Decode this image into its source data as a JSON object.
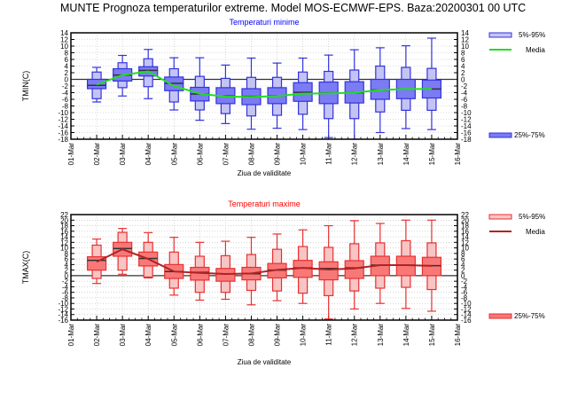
{
  "title": "MUNTE  Prognoza temperaturilor extreme.  Model MOS-ECMWF-EPS. Baza:20200301 00 UTC",
  "chart_data": [
    {
      "type": "box",
      "title": "Temperaturi minime",
      "title_color": "#0000ff",
      "xlabel": "Ziua de validitate",
      "ylabel": "TMIN(C)",
      "ylim": [
        -18,
        14
      ],
      "ytick_step": 2,
      "grid": true,
      "categories": [
        "01-Mar",
        "02-Mar",
        "03-Mar",
        "04-Mar",
        "05-Mar",
        "06-Mar",
        "07-Mar",
        "08-Mar",
        "09-Mar",
        "10-Mar",
        "11-Mar",
        "12-Mar",
        "13-Mar",
        "14-Mar",
        "15-Mar",
        "16-Mar"
      ],
      "colors": {
        "box_outer_fill": "#c4c4f4",
        "box_inner_fill": "#7b7bf4",
        "stroke": "#3333dd",
        "mean_line": "#22dd22",
        "median": "#333333"
      },
      "legend": {
        "outer": "5%-95%",
        "mean": "Media",
        "inner": "25%-75%",
        "position": "right"
      },
      "boxes": [
        {
          "day": "02-Mar",
          "wlo": -6.8,
          "p5": -5.8,
          "p25": -2.8,
          "median": -1.8,
          "p75": 0.0,
          "p95": 2.2,
          "whi": 3.6,
          "mean": -1.6
        },
        {
          "day": "03-Mar",
          "wlo": -5.0,
          "p5": -2.5,
          "p25": -0.5,
          "median": 1.3,
          "p75": 3.2,
          "p95": 5.0,
          "whi": 7.2,
          "mean": 1.3
        },
        {
          "day": "04-Mar",
          "wlo": -5.8,
          "p5": -2.2,
          "p25": 1.0,
          "median": 2.7,
          "p75": 3.8,
          "p95": 6.2,
          "whi": 9.0,
          "mean": 2.4
        },
        {
          "day": "05-Mar",
          "wlo": -9.2,
          "p5": -6.8,
          "p25": -3.4,
          "median": -1.2,
          "p75": 0.7,
          "p95": 3.2,
          "whi": 6.5,
          "mean": -2.0
        },
        {
          "day": "06-Mar",
          "wlo": -12.3,
          "p5": -9.2,
          "p25": -6.5,
          "median": -4.4,
          "p75": -2.4,
          "p95": 0.9,
          "whi": 6.5,
          "mean": -4.3
        },
        {
          "day": "07-Mar",
          "wlo": -13.3,
          "p5": -10.3,
          "p25": -7.3,
          "median": -5.0,
          "p75": -2.5,
          "p95": 0.3,
          "whi": 4.3,
          "mean": -5.2
        },
        {
          "day": "08-Mar",
          "wlo": -15.0,
          "p5": -11.0,
          "p25": -7.6,
          "median": -5.1,
          "p75": -2.8,
          "p95": 0.6,
          "whi": 6.4,
          "mean": -5.3
        },
        {
          "day": "09-Mar",
          "wlo": -14.7,
          "p5": -10.8,
          "p25": -7.3,
          "median": -4.9,
          "p75": -2.5,
          "p95": 0.6,
          "whi": 4.9,
          "mean": -5.0
        },
        {
          "day": "10-Mar",
          "wlo": -15.1,
          "p5": -10.5,
          "p25": -6.6,
          "median": -3.9,
          "p75": -1.0,
          "p95": 2.2,
          "whi": 6.4,
          "mean": -4.3
        },
        {
          "day": "11-Mar",
          "wlo": -17.5,
          "p5": -11.8,
          "p25": -7.3,
          "median": -4.1,
          "p75": -0.8,
          "p95": 2.4,
          "whi": 7.3,
          "mean": -4.2
        },
        {
          "day": "12-Mar",
          "wlo": -18.0,
          "p5": -11.8,
          "p25": -7.1,
          "median": -4.0,
          "p75": -0.7,
          "p95": 2.8,
          "whi": 8.9,
          "mean": -4.0
        },
        {
          "day": "13-Mar",
          "wlo": -16.0,
          "p5": -9.8,
          "p25": -6.0,
          "median": -3.2,
          "p75": 0.0,
          "p95": 4.0,
          "whi": 9.5,
          "mean": -3.2
        },
        {
          "day": "14-Mar",
          "wlo": -14.8,
          "p5": -9.3,
          "p25": -5.8,
          "median": -2.9,
          "p75": 0.0,
          "p95": 3.6,
          "whi": 10.1,
          "mean": -2.9
        },
        {
          "day": "15-Mar",
          "wlo": -15.1,
          "p5": -9.3,
          "p25": -5.6,
          "median": -2.9,
          "p75": -0.2,
          "p95": 3.3,
          "whi": 12.4,
          "mean": -2.9
        }
      ]
    },
    {
      "type": "box",
      "title": "Temperaturi maxime",
      "title_color": "#ff0000",
      "xlabel": "Ziua de validitate",
      "ylabel": "TMAX(C)",
      "ylim": [
        -16,
        22
      ],
      "ytick_step": 2,
      "grid": true,
      "categories": [
        "01-Mar",
        "02-Mar",
        "03-Mar",
        "04-Mar",
        "05-Mar",
        "06-Mar",
        "07-Mar",
        "08-Mar",
        "09-Mar",
        "10-Mar",
        "11-Mar",
        "12-Mar",
        "13-Mar",
        "14-Mar",
        "15-Mar",
        "16-Mar"
      ],
      "colors": {
        "box_outer_fill": "#f8c4c4",
        "box_inner_fill": "#f87878",
        "stroke": "#e83030",
        "mean_line": "#b22222",
        "median": "#333333"
      },
      "legend": {
        "outer": "5%-95%",
        "mean": "Media",
        "inner": "25%-75%",
        "position": "right"
      },
      "boxes": [
        {
          "day": "02-Mar",
          "wlo": -2.8,
          "p5": -1.0,
          "p25": 2.0,
          "median": 5.5,
          "p75": 6.8,
          "p95": 11.0,
          "whi": 13.2,
          "mean": 5.0
        },
        {
          "day": "03-Mar",
          "wlo": 0.5,
          "p5": 2.0,
          "p25": 7.0,
          "median": 9.8,
          "p75": 12.0,
          "p95": 15.6,
          "whi": 17.0,
          "mean": 9.5
        },
        {
          "day": "04-Mar",
          "wlo": -0.8,
          "p5": -0.5,
          "p25": 3.5,
          "median": 6.2,
          "p75": 8.5,
          "p95": 12.0,
          "whi": 15.5,
          "mean": 6.0
        },
        {
          "day": "05-Mar",
          "wlo": -7.0,
          "p5": -4.5,
          "p25": -1.0,
          "median": 1.5,
          "p75": 4.0,
          "p95": 8.5,
          "whi": 13.8,
          "mean": 1.5
        },
        {
          "day": "06-Mar",
          "wlo": -8.8,
          "p5": -6.0,
          "p25": -1.6,
          "median": 1.2,
          "p75": 3.0,
          "p95": 7.0,
          "whi": 12.0,
          "mean": 1.0
        },
        {
          "day": "07-Mar",
          "wlo": -8.5,
          "p5": -6.0,
          "p25": -2.0,
          "median": 0.7,
          "p75": 2.6,
          "p95": 7.2,
          "whi": 12.4,
          "mean": 0.6
        },
        {
          "day": "08-Mar",
          "wlo": -10.5,
          "p5": -5.3,
          "p25": -1.5,
          "median": 0.7,
          "p75": 3.0,
          "p95": 7.6,
          "whi": 13.8,
          "mean": 0.8
        },
        {
          "day": "09-Mar",
          "wlo": -9.0,
          "p5": -5.5,
          "p25": -0.8,
          "median": 2.0,
          "p75": 4.4,
          "p95": 9.5,
          "whi": 15.0,
          "mean": 2.1
        },
        {
          "day": "10-Mar",
          "wlo": -10.0,
          "p5": -6.3,
          "p25": -0.6,
          "median": 2.8,
          "p75": 5.5,
          "p95": 10.5,
          "whi": 16.5,
          "mean": 2.8
        },
        {
          "day": "11-Mar",
          "wlo": -15.6,
          "p5": -7.2,
          "p25": -1.5,
          "median": 2.6,
          "p75": 5.0,
          "p95": 10.2,
          "whi": 18.0,
          "mean": 2.2
        },
        {
          "day": "12-Mar",
          "wlo": -12.0,
          "p5": -5.5,
          "p25": -1.0,
          "median": 2.8,
          "p75": 5.4,
          "p95": 11.5,
          "whi": 19.8,
          "mean": 2.6
        },
        {
          "day": "13-Mar",
          "wlo": -10.0,
          "p5": -4.5,
          "p25": 0.0,
          "median": 3.8,
          "p75": 7.0,
          "p95": 11.8,
          "whi": 18.8,
          "mean": 3.8
        },
        {
          "day": "14-Mar",
          "wlo": -11.8,
          "p5": -4.2,
          "p25": 0.0,
          "median": 3.8,
          "p75": 7.0,
          "p95": 12.6,
          "whi": 20.0,
          "mean": 3.8
        },
        {
          "day": "15-Mar",
          "wlo": -12.8,
          "p5": -5.0,
          "p25": 0.0,
          "median": 3.6,
          "p75": 6.6,
          "p95": 11.8,
          "whi": 20.0,
          "mean": 3.5
        }
      ]
    }
  ]
}
